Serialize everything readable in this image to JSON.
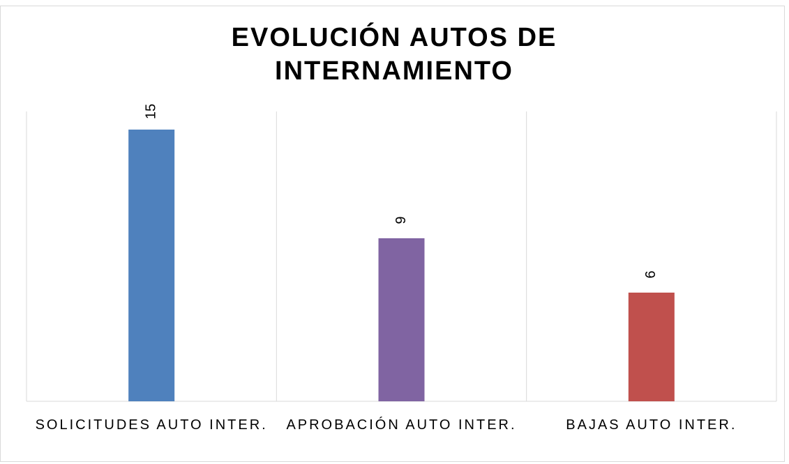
{
  "chart_data": {
    "type": "bar",
    "title": "EVOLUCIÓN AUTOS DE INTERNAMIENTO",
    "categories": [
      "SOLICITUDES AUTO INTER.",
      "APROBACIÓN AUTO INTER.",
      "BAJAS AUTO INTER."
    ],
    "values": [
      15,
      9,
      6
    ],
    "colors": [
      "#4f81bd",
      "#8064a2",
      "#c0504d"
    ],
    "ylim": [
      0,
      16
    ],
    "grid": true
  }
}
